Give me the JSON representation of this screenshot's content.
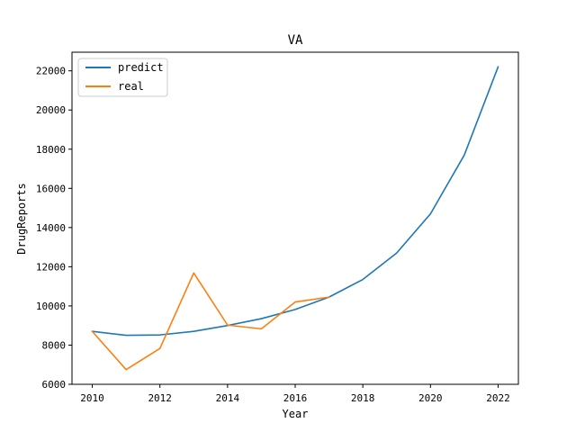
{
  "chart_data": {
    "type": "line",
    "title": "VA",
    "xlabel": "Year",
    "ylabel": "DrugReports",
    "xlim": [
      2009.4,
      2022.6
    ],
    "ylim": [
      6000,
      22950
    ],
    "xticks": [
      2010,
      2012,
      2014,
      2016,
      2018,
      2020,
      2022
    ],
    "yticks": [
      6000,
      8000,
      10000,
      12000,
      14000,
      16000,
      18000,
      20000,
      22000
    ],
    "grid": false,
    "legend_position": "top-left",
    "series": [
      {
        "name": "predict",
        "color": "#1f77b4",
        "x": [
          2010,
          2011,
          2012,
          2013,
          2014,
          2015,
          2016,
          2017,
          2018,
          2019,
          2020,
          2021,
          2022
        ],
        "y": [
          8700,
          8500,
          8520,
          8700,
          9000,
          9350,
          9820,
          10450,
          11350,
          12700,
          14700,
          17700,
          22200
        ]
      },
      {
        "name": "real",
        "color": "#ff7f0e",
        "x": [
          2010,
          2011,
          2012,
          2013,
          2014,
          2015,
          2016,
          2017
        ],
        "y": [
          8700,
          6750,
          7830,
          11680,
          9020,
          8830,
          10200,
          10450
        ]
      }
    ]
  }
}
